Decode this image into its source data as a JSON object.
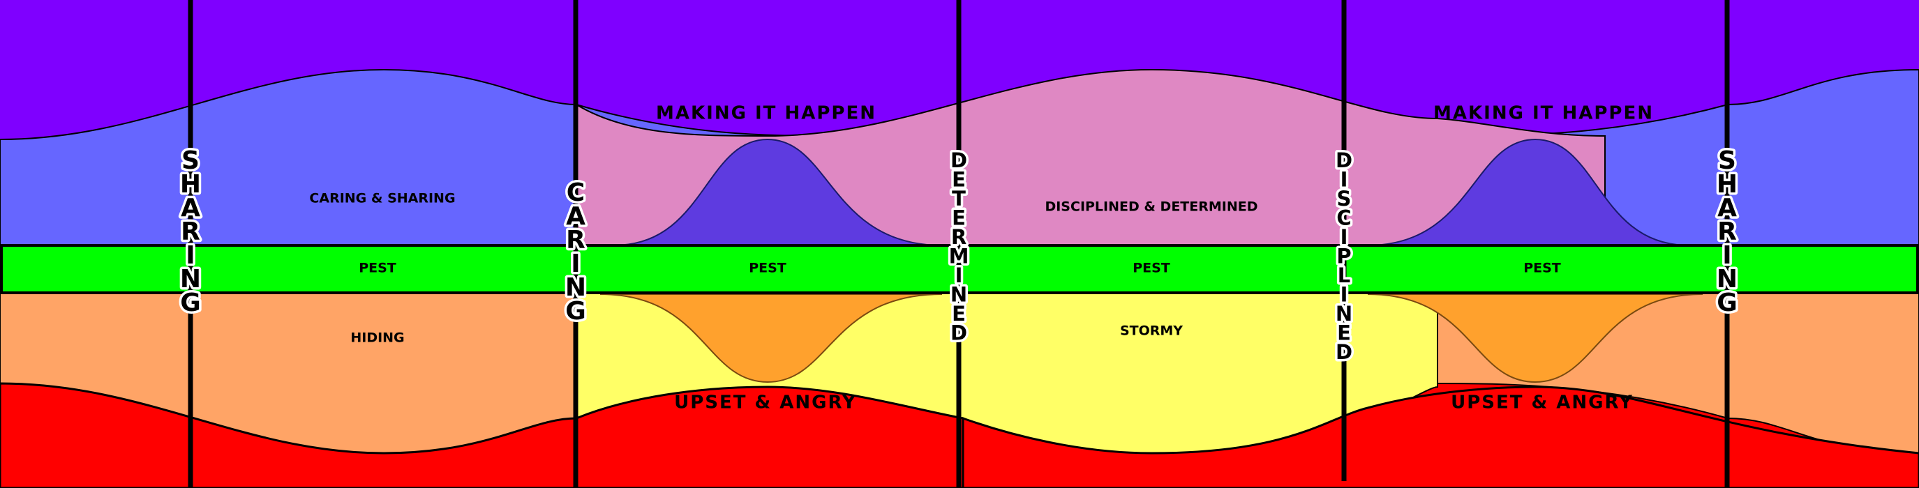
{
  "colors": {
    "top_band": "#7F00FF",
    "blue_band": "#6666FF",
    "blue_bump": "#5E3BE0",
    "pink_band": "#DF88C3",
    "pest_band": "#00FF00",
    "orange_band": "#FFA466",
    "orange_bump": "#FFA12D",
    "yellow_band": "#FFFF66",
    "red_band": "#FF0000",
    "divider": "#000000"
  },
  "labels": {
    "caring_sharing": "CARING & SHARING",
    "disciplined_determined": "DISCIPLINED & DETERMINED",
    "making_it_happen_1": "MAKING IT HAPPEN",
    "making_it_happen_2": "MAKING IT HAPPEN",
    "pest_1": "PEST",
    "pest_2": "PEST",
    "pest_3": "PEST",
    "pest_4": "PEST",
    "hiding": "HIDING",
    "stormy": "STORMY",
    "upset_angry_1": "UPSET & ANGRY",
    "upset_angry_2": "UPSET & ANGRY"
  },
  "dividers": [
    {
      "word": "SHARING"
    },
    {
      "word": "CARING"
    },
    {
      "word": "DETERMINED"
    },
    {
      "word": "DISCIPLINED"
    },
    {
      "word": "SHARING"
    }
  ]
}
